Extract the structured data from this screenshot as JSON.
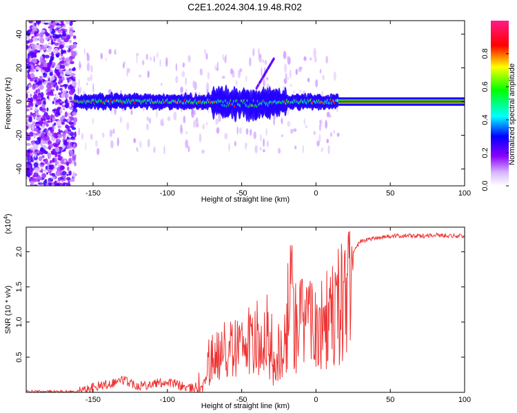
{
  "title": "C2E1.2024.304.19.48.R02",
  "chart_data": [
    {
      "type": "heatmap",
      "xlabel": "Height of straight line (km)",
      "ylabel": "Frequency (Hz)",
      "xlim": [
        -195,
        100
      ],
      "ylim": [
        -50,
        48
      ],
      "x_ticks": [
        -150,
        -100,
        -50,
        0,
        50,
        100
      ],
      "y_ticks": [
        -40,
        -20,
        0,
        20,
        40
      ],
      "colorbar": {
        "label": "Normalized spectral amplitude",
        "range": [
          0.0,
          1.0
        ],
        "ticks": [
          "0.0",
          "0.2",
          "0.4",
          "0.6",
          "0.8"
        ],
        "colors": [
          "#ffffff",
          "#8b00ff",
          "#0000ff",
          "#00ffff",
          "#00ff00",
          "#ffff00",
          "#ff0000",
          "#ff0080"
        ]
      },
      "features": [
        {
          "x": [
            -195,
            -162
          ],
          "freq": [
            -50,
            48
          ],
          "amplitude": 0.15
        },
        {
          "x": [
            -162,
            15
          ],
          "freq_center": 0,
          "amplitude": 0.45
        },
        {
          "x": [
            15,
            100
          ],
          "freq_center": 0,
          "amplitude": 0.9
        }
      ]
    },
    {
      "type": "line",
      "xlabel": "Height of straight line (km)",
      "ylabel": "SNR (10 * v/v)",
      "y_multiplier_label": "(x10",
      "y_multiplier_exp": "4",
      "xlim": [
        -195,
        100
      ],
      "ylim": [
        0,
        2.35
      ],
      "x_ticks": [
        -150,
        -100,
        -50,
        0,
        50,
        100
      ],
      "y_ticks": [
        "0.5",
        "1.0",
        "1.5",
        "2.0"
      ],
      "line_color": "#ee3333",
      "series": [
        {
          "x": [
            -195,
            -160,
            -153,
            -148,
            -140,
            -130,
            -120,
            -110,
            -100,
            -92,
            -85,
            -78,
            -74,
            -70,
            -65,
            -60,
            -55,
            -50,
            -45,
            -40,
            -35,
            -30,
            -27,
            -24,
            -20,
            -17,
            -15,
            -10,
            -5,
            0,
            5,
            10,
            15,
            20,
            25,
            30,
            40,
            50,
            60,
            70,
            80,
            90,
            100
          ],
          "values": [
            0.01,
            0.01,
            0.05,
            0.08,
            0.12,
            0.18,
            0.1,
            0.12,
            0.15,
            0.1,
            0.05,
            0.1,
            0.35,
            0.5,
            0.55,
            0.75,
            0.8,
            0.7,
            0.95,
            0.85,
            0.95,
            0.7,
            0.5,
            0.8,
            1.2,
            1.8,
            1.3,
            1.3,
            1.2,
            1.4,
            1.5,
            1.6,
            1.7,
            1.9,
            2.0,
            2.15,
            2.2,
            2.22,
            2.23,
            2.22,
            2.24,
            2.23,
            2.22
          ]
        }
      ]
    }
  ]
}
